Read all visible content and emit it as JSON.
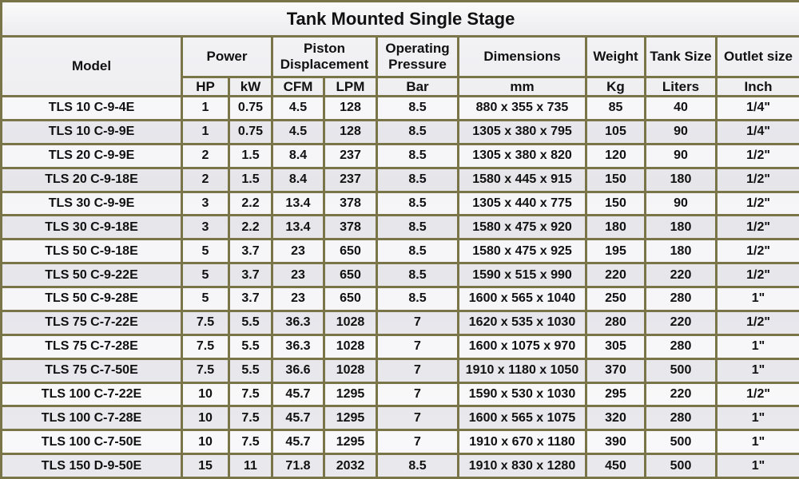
{
  "title": "Tank Mounted Single Stage",
  "headers": {
    "model": "Model",
    "power": "Power",
    "piston_displacement": "Piston Displacement",
    "operating_pressure": "Operating Pressure",
    "dimensions": "Dimensions",
    "weight": "Weight",
    "tank_size": "Tank Size",
    "outlet_size": "Outlet size"
  },
  "units": {
    "hp": "HP",
    "kw": "kW",
    "cfm": "CFM",
    "lpm": "LPM",
    "bar": "Bar",
    "mm": "mm",
    "kg": "Kg",
    "liters": "Liters",
    "inch": "Inch"
  },
  "rows": [
    [
      "TLS 10 C-9-4E",
      "1",
      "0.75",
      "4.5",
      "128",
      "8.5",
      "880 x 355 x 735",
      "85",
      "40",
      "1/4\""
    ],
    [
      "TLS 10 C-9-9E",
      "1",
      "0.75",
      "4.5",
      "128",
      "8.5",
      "1305 x 380 x 795",
      "105",
      "90",
      "1/4\""
    ],
    [
      "TLS 20 C-9-9E",
      "2",
      "1.5",
      "8.4",
      "237",
      "8.5",
      "1305 x 380 x 820",
      "120",
      "90",
      "1/2\""
    ],
    [
      "TLS 20 C-9-18E",
      "2",
      "1.5",
      "8.4",
      "237",
      "8.5",
      "1580 x 445 x 915",
      "150",
      "180",
      "1/2\""
    ],
    [
      "TLS 30 C-9-9E",
      "3",
      "2.2",
      "13.4",
      "378",
      "8.5",
      "1305 x 440 x 775",
      "150",
      "90",
      "1/2\""
    ],
    [
      "TLS 30 C-9-18E",
      "3",
      "2.2",
      "13.4",
      "378",
      "8.5",
      "1580 x 475 x 920",
      "180",
      "180",
      "1/2\""
    ],
    [
      "TLS 50 C-9-18E",
      "5",
      "3.7",
      "23",
      "650",
      "8.5",
      "1580 x 475 x 925",
      "195",
      "180",
      "1/2\""
    ],
    [
      "TLS 50 C-9-22E",
      "5",
      "3.7",
      "23",
      "650",
      "8.5",
      "1590 x 515 x 990",
      "220",
      "220",
      "1/2\""
    ],
    [
      "TLS 50 C-9-28E",
      "5",
      "3.7",
      "23",
      "650",
      "8.5",
      "1600 x 565 x 1040",
      "250",
      "280",
      "1\""
    ],
    [
      "TLS 75 C-7-22E",
      "7.5",
      "5.5",
      "36.3",
      "1028",
      "7",
      "1620 x 535 x 1030",
      "280",
      "220",
      "1/2\""
    ],
    [
      "TLS 75 C-7-28E",
      "7.5",
      "5.5",
      "36.3",
      "1028",
      "7",
      "1600 x 1075 x 970",
      "305",
      "280",
      "1\""
    ],
    [
      "TLS 75 C-7-50E",
      "7.5",
      "5.5",
      "36.6",
      "1028",
      "7",
      "1910 x 1180 x 1050",
      "370",
      "500",
      "1\""
    ],
    [
      "TLS 100 C-7-22E",
      "10",
      "7.5",
      "45.7",
      "1295",
      "7",
      "1590 x 530 x 1030",
      "295",
      "220",
      "1/2\""
    ],
    [
      "TLS 100 C-7-28E",
      "10",
      "7.5",
      "45.7",
      "1295",
      "7",
      "1600 x 565 x 1075",
      "320",
      "280",
      "1\""
    ],
    [
      "TLS 100 C-7-50E",
      "10",
      "7.5",
      "45.7",
      "1295",
      "7",
      "1910 x 670 x 1180",
      "390",
      "500",
      "1\""
    ],
    [
      "TLS 150 D-9-50E",
      "15",
      "11",
      "71.8",
      "2032",
      "8.5",
      "1910 x 830 x 1280",
      "450",
      "500",
      "1\""
    ]
  ],
  "colors": {
    "border": "#7a7549",
    "background": "#ededf1"
  }
}
